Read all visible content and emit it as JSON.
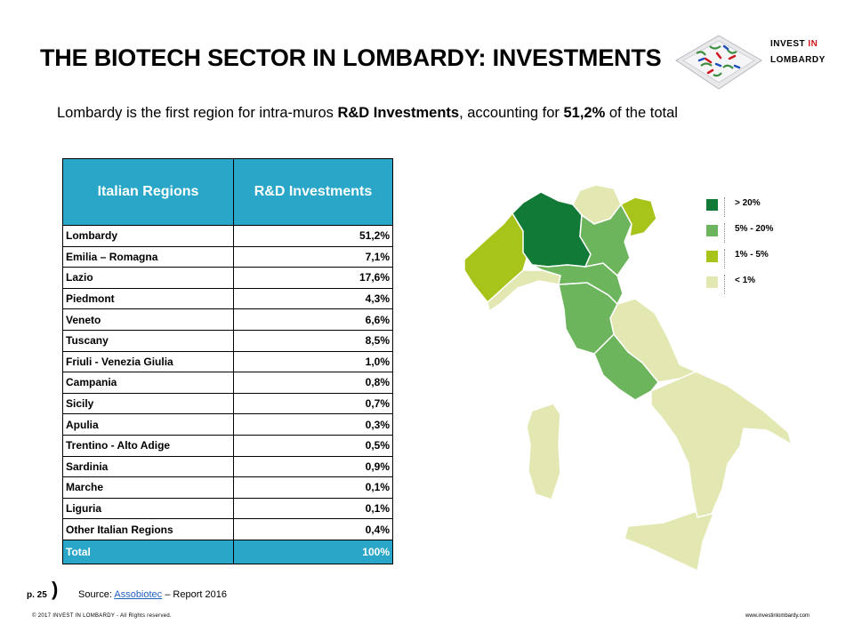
{
  "header": {
    "title": "THE BIOTECH SECTOR IN LOMBARDY: INVESTMENTS",
    "logo_line1_a": "INVEST ",
    "logo_line1_b": "IN",
    "logo_line2": "LOMBARDY",
    "logo_accent_color": "#d0171e"
  },
  "subtitle": {
    "part1": "Lombardy is the first region for intra-muros ",
    "bold1": "R&D Investments",
    "part2": ", accounting for ",
    "bold2": "51,2%",
    "part3": " of the total"
  },
  "table": {
    "headers": [
      "Italian Regions",
      "R&D Investments"
    ],
    "header_color": "#2aa7c8",
    "rows": [
      [
        "Lombardy",
        "51,2%"
      ],
      [
        "Emilia – Romagna",
        "7,1%"
      ],
      [
        "Lazio",
        "17,6%"
      ],
      [
        "Piedmont",
        "4,3%"
      ],
      [
        "Veneto",
        "6,6%"
      ],
      [
        "Tuscany",
        "8,5%"
      ],
      [
        "Friuli - Venezia Giulia",
        "1,0%"
      ],
      [
        "Campania",
        "0,8%"
      ],
      [
        "Sicily",
        "0,7%"
      ],
      [
        "Apulia",
        "0,3%"
      ],
      [
        "Trentino - Alto Adige",
        "0,5%"
      ],
      [
        "Sardinia",
        "0,9%"
      ],
      [
        "Marche",
        "0,1%"
      ],
      [
        "Liguria",
        "0,1%"
      ],
      [
        "Other Italian Regions",
        "0,4%"
      ]
    ],
    "total": [
      "Total",
      "100%"
    ]
  },
  "legend": [
    {
      "label": "> 20%",
      "color": "#117a37"
    },
    {
      "label": "5% - 20%",
      "color": "#6db55c"
    },
    {
      "label": "1% - 5%",
      "color": "#a6c41a"
    },
    {
      "label": "< 1%",
      "color": "#e3e8b2"
    }
  ],
  "footer": {
    "page": "p. 25",
    "paren": ")",
    "source_prefix": "Source: ",
    "source_link": "Assobiotec",
    "source_suffix": " – Report 2016",
    "copyright": "© 2017 INVEST IN LOMBARDY - All Rights reserved.",
    "website": "www.investinlombardy.com"
  }
}
